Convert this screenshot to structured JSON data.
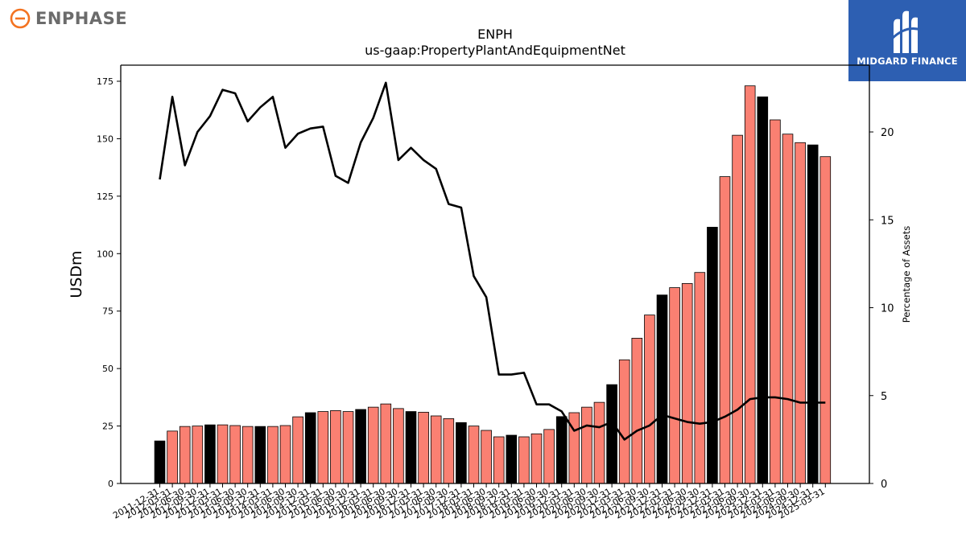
{
  "branding": {
    "left_logo_text": "ENPHASE",
    "left_logo_color": "#f37321",
    "right_logo_text": "MIDGARD FINANCE",
    "right_logo_bg": "#2d5fb2"
  },
  "chart_data": {
    "type": "bar",
    "title": "ENPH",
    "subtitle": "us-gaap:PropertyPlantAndEquipmentNet",
    "ylabel": "USDm",
    "y2label": "Percentage of Assets",
    "ylim": [
      0,
      182
    ],
    "y2lim": [
      0,
      23.8
    ],
    "yticks": [
      0,
      25,
      50,
      75,
      100,
      125,
      150,
      175
    ],
    "y2ticks": [
      0,
      5,
      10,
      15,
      20
    ],
    "bar_color": "#fa8072",
    "q4_bar_color": "#000000",
    "line_color": "#000000",
    "categories": [
      "2011-12-31",
      "2012-03-31",
      "2012-06-30",
      "2012-09-30",
      "2012-12-31",
      "2013-03-31",
      "2013-06-30",
      "2013-09-30",
      "2013-12-31",
      "2014-03-31",
      "2014-06-30",
      "2014-09-30",
      "2014-12-31",
      "2015-03-31",
      "2015-06-30",
      "2015-09-30",
      "2015-12-31",
      "2016-03-31",
      "2016-06-30",
      "2016-09-30",
      "2016-12-31",
      "2017-03-31",
      "2017-06-30",
      "2017-09-30",
      "2017-12-31",
      "2018-03-31",
      "2018-06-30",
      "2018-09-30",
      "2018-12-31",
      "2019-03-31",
      "2019-06-30",
      "2019-09-30",
      "2019-12-31",
      "2020-03-31",
      "2020-06-30",
      "2020-09-30",
      "2020-12-31",
      "2021-03-31",
      "2021-06-30",
      "2021-09-30",
      "2021-12-31",
      "2022-03-31",
      "2022-06-30",
      "2022-09-30",
      "2022-12-31",
      "2023-03-31",
      "2023-06-30",
      "2023-09-30",
      "2023-12-31",
      "2024-03-31",
      "2024-06-30",
      "2024-09-30",
      "2024-12-31",
      "2025-03-31"
    ],
    "values": [
      18.5,
      22.8,
      24.8,
      25.0,
      25.5,
      25.5,
      25.2,
      24.8,
      24.8,
      24.8,
      25.2,
      29.0,
      30.8,
      31.3,
      31.7,
      31.3,
      32.2,
      33.2,
      34.6,
      32.6,
      31.3,
      31.0,
      29.4,
      28.2,
      26.5,
      25.0,
      23.1,
      20.3,
      21.0,
      20.3,
      21.6,
      23.5,
      29.1,
      30.8,
      33.2,
      35.3,
      43.0,
      53.8,
      63.2,
      73.3,
      82.0,
      85.2,
      87.0,
      91.8,
      111.5,
      133.5,
      151.5,
      173.0,
      168.2,
      158.2,
      152.0,
      148.3,
      147.3,
      142.2
    ],
    "pct_of_assets": [
      17.3,
      22.0,
      18.1,
      20.0,
      20.9,
      22.4,
      22.2,
      20.6,
      21.4,
      22.0,
      19.1,
      19.9,
      20.2,
      20.3,
      17.5,
      17.1,
      19.4,
      20.8,
      22.8,
      18.4,
      19.1,
      18.4,
      17.9,
      15.9,
      15.7,
      11.8,
      10.6,
      6.2,
      6.2,
      6.3,
      4.5,
      4.5,
      4.1,
      3.0,
      3.3,
      3.2,
      3.5,
      2.5,
      3.0,
      3.3,
      3.9,
      3.7,
      3.5,
      3.4,
      3.5,
      3.8,
      4.2,
      4.8,
      4.9,
      4.9,
      4.8,
      4.6,
      4.6,
      4.6
    ],
    "grid": false,
    "legend": "none"
  }
}
